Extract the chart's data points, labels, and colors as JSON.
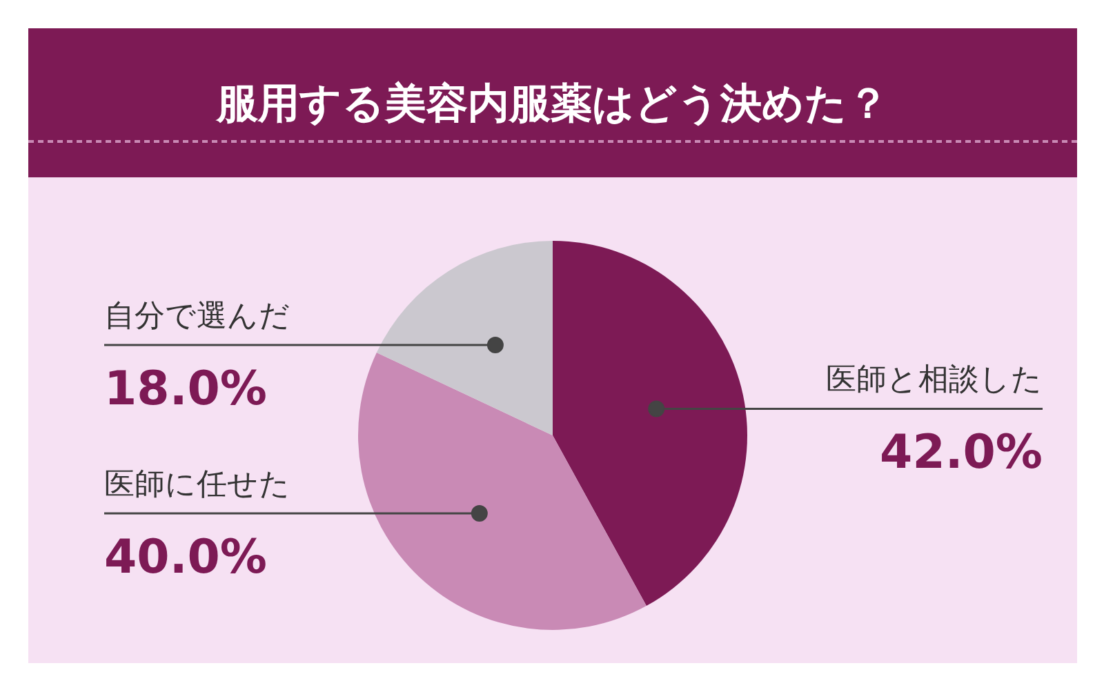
{
  "chart_data": {
    "type": "pie",
    "title": "服用する美容内服薬はどう決めた？",
    "categories": [
      "医師と相談した",
      "医師に任せた",
      "自分で選んだ"
    ],
    "values": [
      42.0,
      40.0,
      18.0
    ],
    "colors": [
      "#7d1a55",
      "#c98ab5",
      "#cbc8cf"
    ],
    "value_labels": [
      "42.0%",
      "40.0%",
      "18.0%"
    ]
  }
}
